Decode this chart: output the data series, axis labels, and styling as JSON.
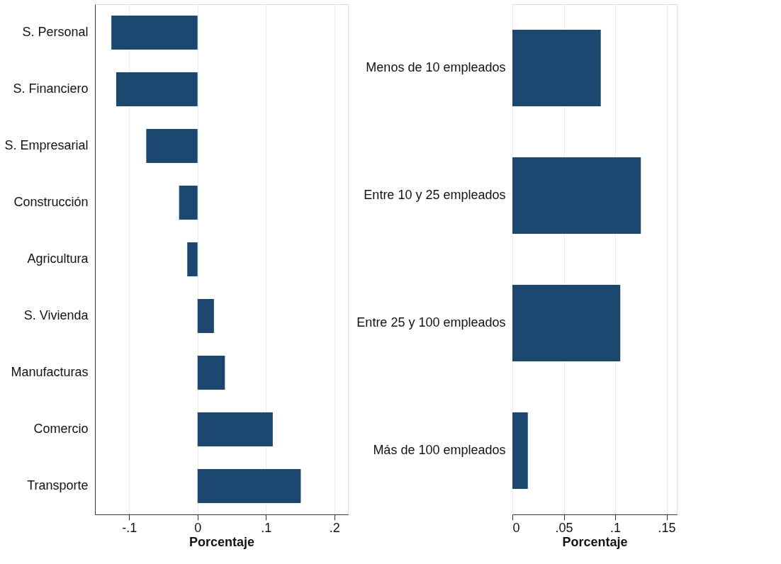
{
  "chart_data": [
    {
      "type": "bar",
      "orientation": "horizontal",
      "categories": [
        "S. Personal",
        "S. Financiero",
        "S. Empresarial",
        "Construcción",
        "Agricultura",
        "S. Vivienda",
        "Manufacturas",
        "Comercio",
        "Transporte"
      ],
      "values": [
        -0.126,
        -0.119,
        -0.075,
        -0.027,
        -0.015,
        0.024,
        0.04,
        0.11,
        0.151
      ],
      "color": "#1c476e",
      "xlabel": "Porcentaje",
      "xlim": [
        -0.15,
        0.22
      ],
      "xticks": [
        {
          "value": -0.1,
          "label": "-.1"
        },
        0,
        {
          "value": 0.1,
          "label": ".1"
        },
        {
          "value": 0.2,
          "label": ".2"
        }
      ],
      "grid": "x"
    },
    {
      "type": "bar",
      "orientation": "horizontal",
      "categories": [
        "Menos de 10 empleados",
        "Entre 10 y 25 empleados",
        "Entre 25 y 100 empleados",
        "Más de 100 empleados"
      ],
      "values": [
        0.086,
        0.125,
        0.105,
        0.015
      ],
      "color": "#1c476e",
      "xlabel": "Porcentaje",
      "xlim": [
        0,
        0.16
      ],
      "xticks": [
        0,
        {
          "value": 0.05,
          "label": ".05"
        },
        {
          "value": 0.1,
          "label": ".1"
        },
        {
          "value": 0.15,
          "label": ".15"
        }
      ],
      "grid": "x"
    }
  ]
}
